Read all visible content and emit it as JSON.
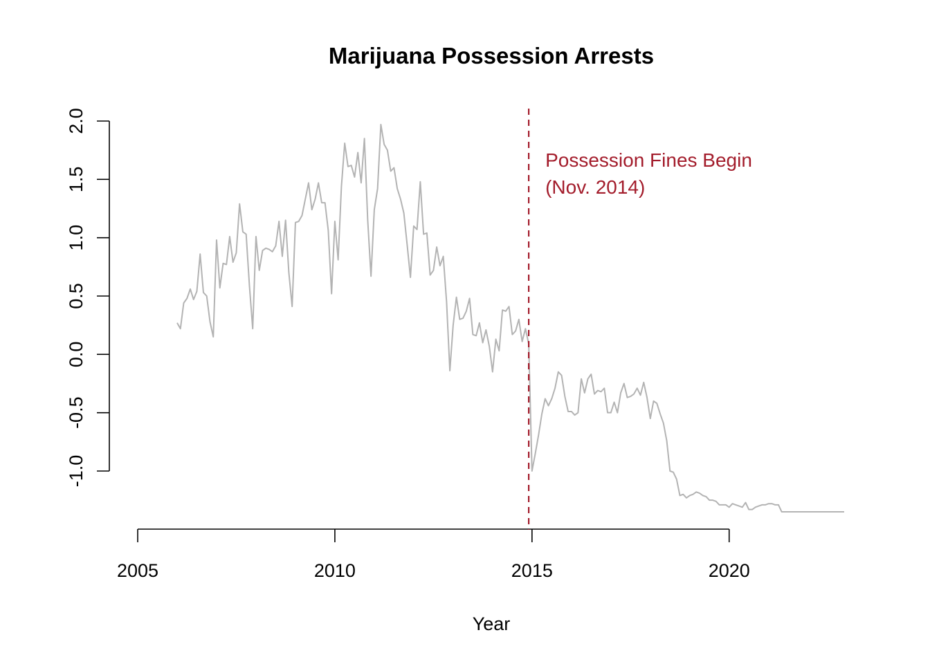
{
  "chart_data": {
    "type": "line",
    "title": "Marijuana Possession Arrests",
    "xlabel": "Year",
    "ylabel": "",
    "xlim": [
      2005,
      2022.9
    ],
    "ylim": [
      -1.36,
      2.1
    ],
    "x_ticks": [
      2005,
      2010,
      2015,
      2020
    ],
    "y_ticks": [
      -1.0,
      -0.5,
      0.0,
      0.5,
      1.0,
      1.5,
      2.0
    ],
    "x_tick_labels": [
      "2005",
      "2010",
      "2015",
      "2020"
    ],
    "y_tick_labels": [
      "-1.0",
      "-0.5",
      "0.0",
      "0.5",
      "1.0",
      "1.5",
      "2.0"
    ],
    "grid": false,
    "series": [
      {
        "color": "#b3b3b3",
        "start_year": 2006.0,
        "step_months": 1,
        "values": [
          0.27,
          0.22,
          0.44,
          0.48,
          0.56,
          0.47,
          0.54,
          0.86,
          0.53,
          0.5,
          0.28,
          0.15,
          0.98,
          0.57,
          0.78,
          0.77,
          1.01,
          0.79,
          0.87,
          1.29,
          1.05,
          1.03,
          0.59,
          0.22,
          1.01,
          0.72,
          0.89,
          0.91,
          0.9,
          0.88,
          0.93,
          1.14,
          0.84,
          1.15,
          0.7,
          0.41,
          1.13,
          1.14,
          1.19,
          1.33,
          1.47,
          1.24,
          1.33,
          1.47,
          1.3,
          1.3,
          1.06,
          0.52,
          1.14,
          0.81,
          1.44,
          1.81,
          1.61,
          1.62,
          1.52,
          1.73,
          1.47,
          1.85,
          1.15,
          0.67,
          1.24,
          1.42,
          1.97,
          1.8,
          1.75,
          1.57,
          1.6,
          1.42,
          1.33,
          1.21,
          0.94,
          0.66,
          1.1,
          1.07,
          1.48,
          1.03,
          1.04,
          0.68,
          0.72,
          0.92,
          0.76,
          0.84,
          0.45,
          -0.14,
          0.25,
          0.49,
          0.3,
          0.31,
          0.37,
          0.48,
          0.17,
          0.16,
          0.27,
          0.1,
          0.21,
          0.07,
          -0.15,
          0.13,
          0.03,
          0.38,
          0.37,
          0.41,
          0.17,
          0.2,
          0.3,
          0.11,
          0.22,
          0.09,
          -1.0,
          -0.85,
          -0.69,
          -0.51,
          -0.38,
          -0.44,
          -0.38,
          -0.29,
          -0.15,
          -0.18,
          -0.36,
          -0.49,
          -0.49,
          -0.52,
          -0.5,
          -0.21,
          -0.33,
          -0.21,
          -0.17,
          -0.34,
          -0.31,
          -0.32,
          -0.29,
          -0.5,
          -0.5,
          -0.41,
          -0.5,
          -0.33,
          -0.25,
          -0.37,
          -0.36,
          -0.34,
          -0.29,
          -0.35,
          -0.24,
          -0.37,
          -0.55,
          -0.4,
          -0.42,
          -0.51,
          -0.59,
          -0.74,
          -1.0,
          -1.01,
          -1.07,
          -1.21,
          -1.2,
          -1.23,
          -1.21,
          -1.2,
          -1.18,
          -1.19,
          -1.21,
          -1.22,
          -1.25,
          -1.25,
          -1.26,
          -1.29,
          -1.29,
          -1.29,
          -1.31,
          -1.28,
          -1.29,
          -1.3,
          -1.31,
          -1.27,
          -1.33,
          -1.33,
          -1.31,
          -1.3,
          -1.29,
          -1.29,
          -1.28,
          -1.28,
          -1.29,
          -1.29,
          -1.35,
          -1.35,
          -1.35,
          -1.35,
          -1.35,
          -1.35,
          -1.35,
          -1.35,
          -1.35,
          -1.35,
          -1.35,
          -1.35,
          -1.35,
          -1.35,
          -1.35,
          -1.35,
          -1.35,
          -1.35,
          -1.35,
          -1.35
        ]
      }
    ],
    "annotations": [
      {
        "type": "vline",
        "x": 2014.917,
        "color": "#a31c2b",
        "style": "dashed",
        "text_lines": [
          "Possession Fines Begin",
          "(Nov. 2014)"
        ]
      }
    ]
  }
}
